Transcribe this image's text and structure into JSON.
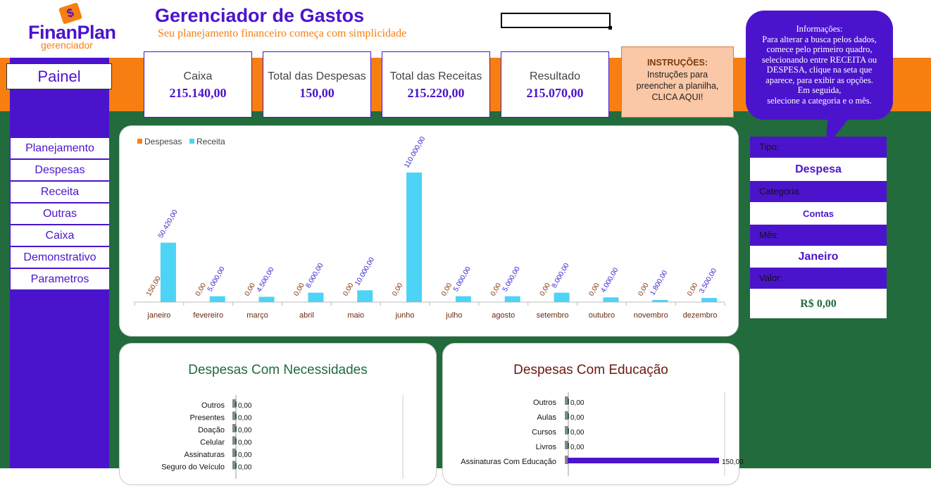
{
  "brand": {
    "name": "FinanPlan",
    "sub": "gerenciador",
    "mark": "$"
  },
  "header": {
    "title": "Gerenciador de Gastos",
    "subtitle": "Seu planejamento financeiro começa com simplicidade"
  },
  "painel_label": "Painel",
  "kpis": [
    {
      "label": "Caixa",
      "value": "215.140,00"
    },
    {
      "label": "Total das Despesas",
      "value": "150,00"
    },
    {
      "label": "Total das Receitas",
      "value": "215.220,00"
    },
    {
      "label": "Resultado",
      "value": "215.070,00"
    }
  ],
  "instructions": {
    "heading": "INSTRUÇÕES:",
    "line1": "Instruções para",
    "line2": "preencher a planilha,",
    "line3": "CLICA AQUI!"
  },
  "info": {
    "lines": [
      "Informações:",
      "Para alterar a busca pelos dados,",
      "comece pelo primeiro quadro,",
      "selecionando entre RECEITA ou",
      "DESPESA, clique na seta que",
      "aparece, para exibir as opções.",
      "Em seguida,",
      "selecione a categoria e o mês."
    ]
  },
  "nav": [
    "Planejamento",
    "Despesas",
    "Receita",
    "Outras",
    "Caixa",
    "Demonstrativo",
    "Parametros"
  ],
  "filter": {
    "tipo_label": "Tipo:",
    "tipo_value": "Despesa",
    "categoria_label": "Categoria:",
    "categoria_value": "Contas",
    "mes_label": "Mês:",
    "mes_value": "Janeiro",
    "valor_label": "Valor:",
    "valor_value": "R$ 0,00"
  },
  "colors": {
    "purple": "#4b14cc",
    "orange": "#f77f11",
    "green": "#226b3c",
    "cyan": "#4dd3f5"
  },
  "chart_data": [
    {
      "type": "bar",
      "title": "",
      "categories": [
        "janeiro",
        "fevereiro",
        "março",
        "abril",
        "maio",
        "junho",
        "julho",
        "agosto",
        "setembro",
        "outubro",
        "novembro",
        "dezembro"
      ],
      "series": [
        {
          "name": "Despesas",
          "values": [
            150,
            0,
            0,
            0,
            0,
            0,
            0,
            0,
            0,
            0,
            0,
            0
          ],
          "labels": [
            "150,00",
            "0,00",
            "0,00",
            "0,00",
            "0,00",
            "0,00",
            "0,00",
            "0,00",
            "0,00",
            "0,00",
            "0,00",
            "0,00"
          ]
        },
        {
          "name": "Receita",
          "values": [
            50420,
            5000,
            4500,
            8000,
            10000,
            110000,
            5000,
            5000,
            8000,
            4000,
            1800,
            3500
          ],
          "labels": [
            "50.420,00",
            "5.000,00",
            "4.500,00",
            "8.000,00",
            "10.000,00",
            "110.000,00",
            "5.000,00",
            "5.000,00",
            "8.000,00",
            "4.000,00",
            "1.800,00",
            "3.500,00"
          ]
        }
      ],
      "legend": "top-left",
      "ylim": [
        0,
        110000
      ]
    },
    {
      "type": "bar",
      "orientation": "horizontal",
      "title": "Despesas Com Necessidades",
      "categories": [
        "Outros",
        "Presentes",
        "Doação",
        "Celular",
        "Assinaturas",
        "Seguro do Veículo"
      ],
      "values": [
        0,
        0,
        0,
        0,
        0,
        0
      ],
      "labels": [
        "0,00",
        "0,00",
        "0,00",
        "0,00",
        "0,00",
        "0,00"
      ]
    },
    {
      "type": "bar",
      "orientation": "horizontal",
      "title": "Despesas Com Educação",
      "categories": [
        "Outros",
        "Aulas",
        "Cursos",
        "Livros",
        "Assinaturas Com Educação"
      ],
      "values": [
        0,
        0,
        0,
        0,
        150
      ],
      "labels": [
        "0,00",
        "0,00",
        "0,00",
        "0,00",
        "150,00"
      ]
    }
  ]
}
